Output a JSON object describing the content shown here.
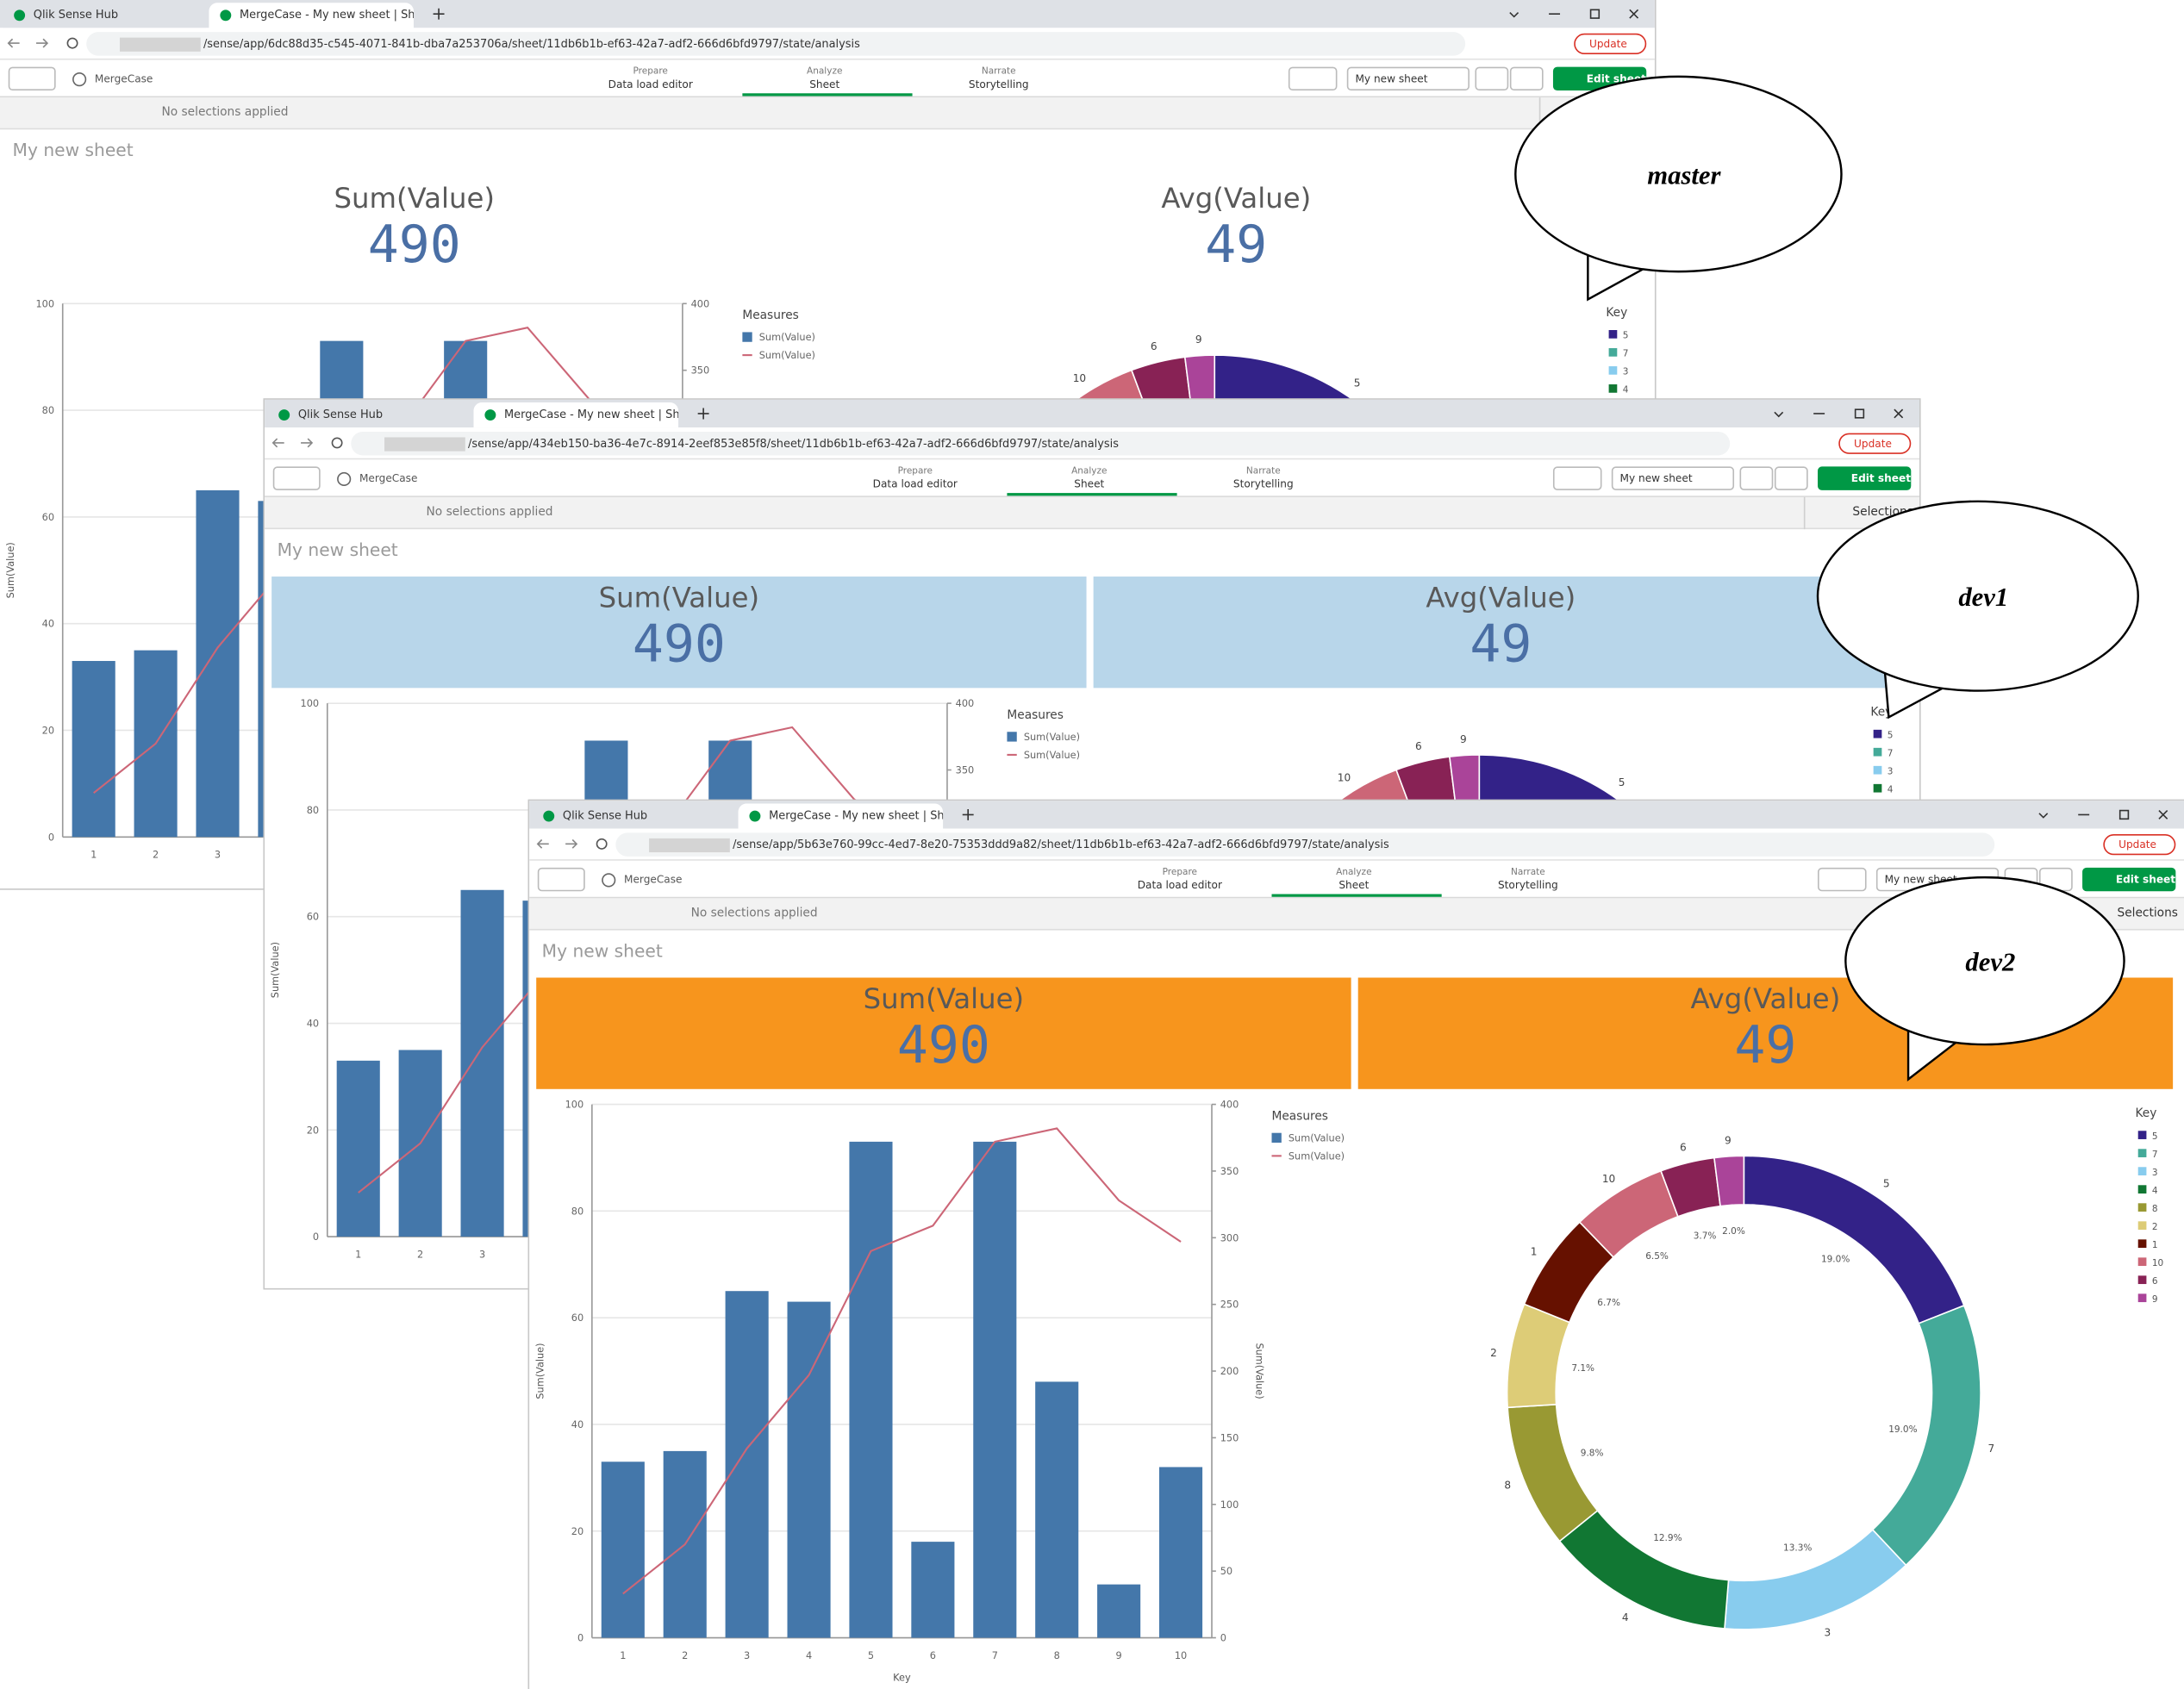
{
  "browser": {
    "tabs": [
      "Qlik Sense Hub",
      "MergeCase - My new sheet | She"
    ],
    "update": "Update"
  },
  "toolbar": {
    "app": "MergeCase",
    "prepare_label": "Prepare",
    "prepare": "Data load editor",
    "analyze_label": "Analyze",
    "analyze": "Sheet",
    "narrate_label": "Narrate",
    "narrate": "Storytelling",
    "sheet_menu": "My new sheet",
    "edit": "Edit sheet"
  },
  "selection_bar": {
    "status": "No selections applied",
    "button": "Selections"
  },
  "sheet": {
    "title": "My new sheet",
    "kpis": [
      {
        "label": "Sum(Value)",
        "value": 490
      },
      {
        "label": "Avg(Value)",
        "value": 49
      }
    ],
    "combo_chart": {
      "type": "bar",
      "categories": [
        "1",
        "2",
        "3",
        "4",
        "5",
        "6",
        "7",
        "8",
        "9",
        "10"
      ],
      "series": [
        {
          "name": "Sum(Value)",
          "color": "#4477aa",
          "values": [
            33,
            35,
            65,
            63,
            93,
            18,
            93,
            48,
            10,
            32
          ]
        },
        {
          "name": "Sum(Value)",
          "color": "#cc6677",
          "axis": "y2",
          "values": [
            33,
            70,
            142,
            197,
            290,
            309,
            372,
            382,
            328,
            297
          ]
        }
      ],
      "ylim": [
        0,
        100
      ],
      "yticks": [
        0,
        20,
        40,
        60,
        80,
        100
      ],
      "y2lim": [
        0,
        400
      ],
      "y2ticks": [
        0,
        50,
        100,
        150,
        200,
        250,
        300,
        350,
        400
      ],
      "y_title": "Sum(Value)",
      "y2_title": "Sum(Value)",
      "x_title": "Key",
      "legend_title": "Measures",
      "grid": true
    },
    "donut_chart": {
      "type": "pie",
      "legend_title": "Key",
      "categories": [
        "5",
        "7",
        "3",
        "4",
        "8",
        "2",
        "1",
        "10",
        "6",
        "9"
      ],
      "values": [
        19,
        19,
        13.3,
        12.9,
        9.8,
        7.1,
        6.7,
        6.5,
        3.7,
        2
      ],
      "value_labels": [
        "19.0%",
        "19.0%",
        "13.3%",
        "12.9%",
        "9.8%",
        "7.1%",
        "6.7%",
        "6.5%",
        "3.7%",
        "2.0%"
      ],
      "colors": [
        "#332288",
        "#44aa99",
        "#88ccee",
        "#117733",
        "#999933",
        "#ddcc77",
        "#661100",
        "#cc6677",
        "#882255",
        "#aa4499"
      ]
    }
  },
  "windows": [
    {
      "callout": "master",
      "url": "/sense/app/6dc88d35-c545-4071-841b-dba7a253706a/sheet/11db6b1b-ef63-42a7-adf2-666d6bfd9797/state/analysis",
      "kpi_color": "#ffffff"
    },
    {
      "callout": "dev1",
      "url": "/sense/app/434eb150-ba36-4e7c-8914-2eef853e85f8/sheet/11db6b1b-ef63-42a7-adf2-666d6bfd9797/state/analysis",
      "kpi_color": "#b8d6ea"
    },
    {
      "callout": "dev2",
      "url": "/sense/app/5b63e760-99cc-4ed7-8e20-75353ddd9a82/sheet/11db6b1b-ef63-42a7-adf2-666d6bfd9797/state/analysis",
      "kpi_color": "#f7951d"
    }
  ]
}
